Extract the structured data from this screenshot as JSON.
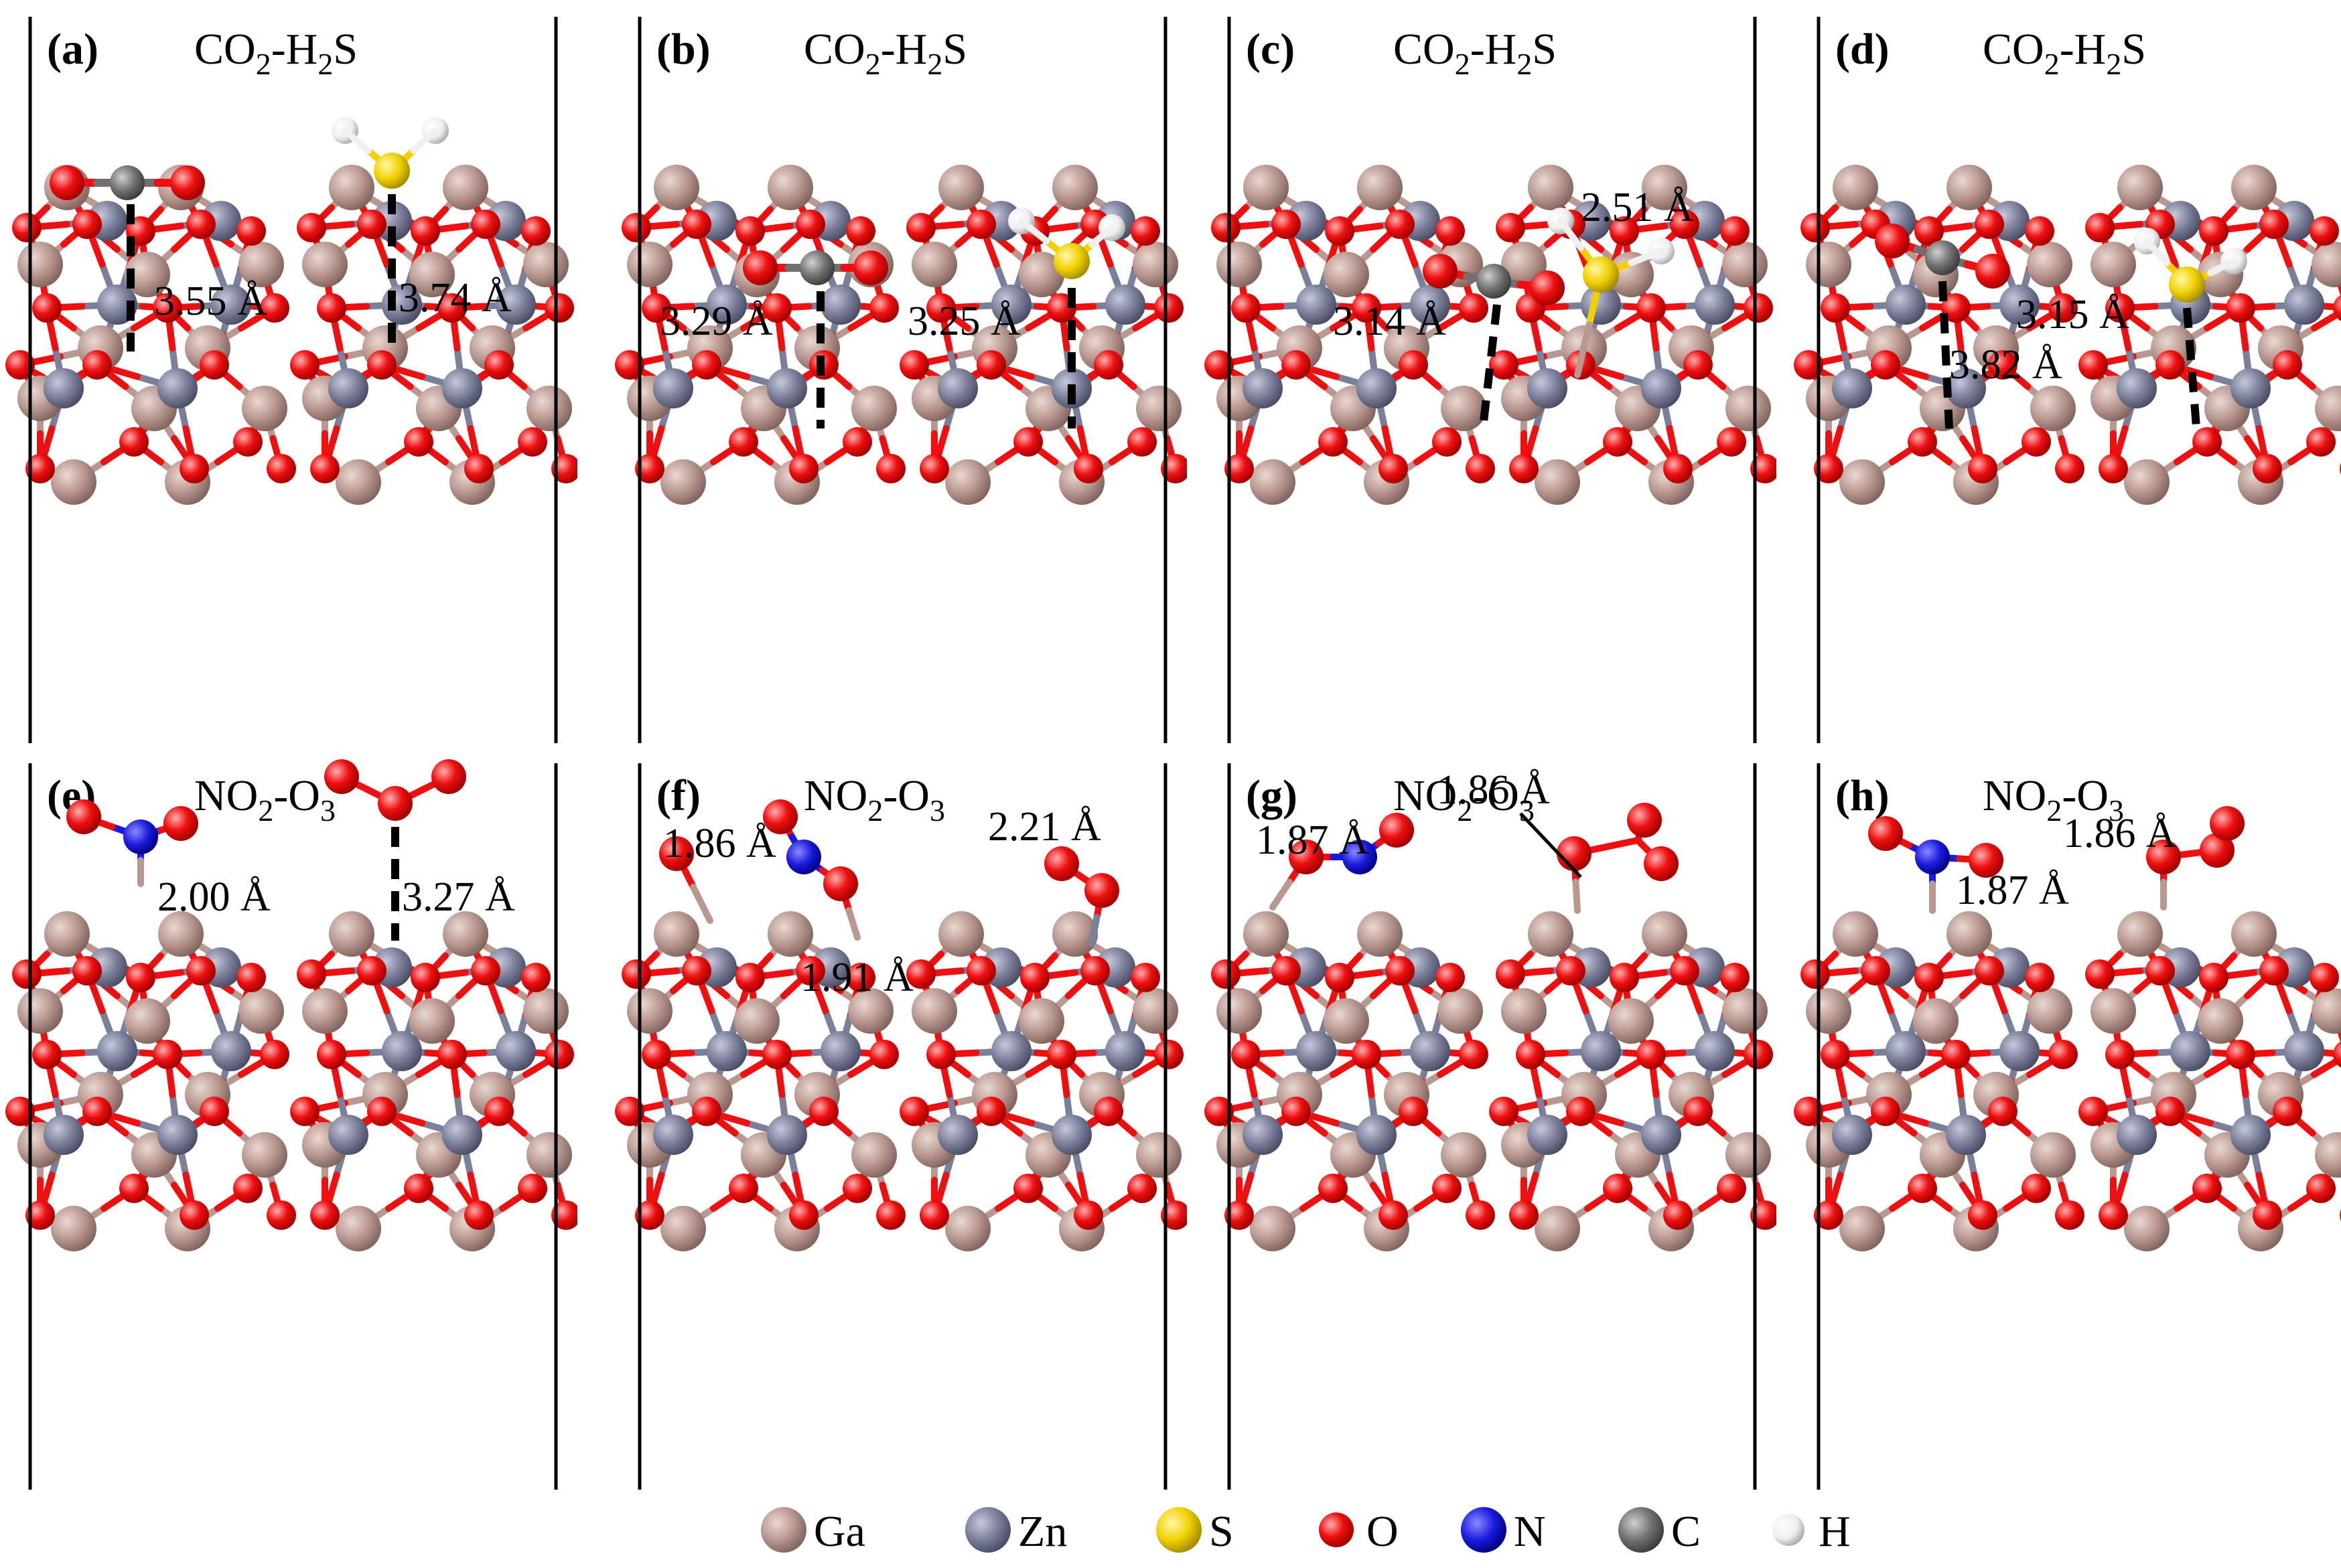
{
  "panels": [
    {
      "label": "(a)",
      "pair": {
        "a": "CO",
        "b": "2",
        "c": "-H",
        "d": "2",
        "e": "S"
      },
      "type": "co2",
      "distances": [
        "3.55 Å",
        "3.74 Å"
      ]
    },
    {
      "label": "(b)",
      "pair": {
        "a": "CO",
        "b": "2",
        "c": "-H",
        "d": "2",
        "e": "S"
      },
      "type": "co2",
      "distances": [
        "3.29 Å",
        "3.25 Å"
      ]
    },
    {
      "label": "(c)",
      "pair": {
        "a": "CO",
        "b": "2",
        "c": "-H",
        "d": "2",
        "e": "S"
      },
      "type": "co2",
      "distances": [
        "3.14 Å",
        "2.51 Å"
      ]
    },
    {
      "label": "(d)",
      "pair": {
        "a": "CO",
        "b": "2",
        "c": "-H",
        "d": "2",
        "e": "S"
      },
      "type": "co2",
      "distances": [
        "3.82 Å",
        "3.15 Å"
      ]
    },
    {
      "label": "(e)",
      "pair": {
        "a": "NO",
        "b": "2",
        "c": "-O",
        "d": "3",
        "e": ""
      },
      "type": "no2",
      "distances": [
        "2.00 Å",
        "3.27 Å"
      ]
    },
    {
      "label": "(f)",
      "pair": {
        "a": "NO",
        "b": "2",
        "c": "-O",
        "d": "3",
        "e": ""
      },
      "type": "no2",
      "distances": [
        "1.86 Å",
        "1.91 Å",
        "2.21 Å"
      ]
    },
    {
      "label": "(g)",
      "pair": {
        "a": "NO",
        "b": "2",
        "c": "-O",
        "d": "3",
        "e": ""
      },
      "type": "no2",
      "distances": [
        "1.87 Å",
        "1.86 Å"
      ]
    },
    {
      "label": "(h)",
      "pair": {
        "a": "NO",
        "b": "2",
        "c": "-O",
        "d": "3",
        "e": ""
      },
      "type": "no2",
      "distances": [
        "1.86 Å",
        "1.87 Å"
      ]
    }
  ],
  "legend": [
    {
      "symbol": "Ga",
      "color": "#b89890"
    },
    {
      "symbol": "Zn",
      "color": "#7a7f9a"
    },
    {
      "symbol": "S",
      "color": "#f0d000"
    },
    {
      "symbol": "O",
      "color": "#ee1010"
    },
    {
      "symbol": "N",
      "color": "#1a1adc"
    },
    {
      "symbol": "C",
      "color": "#707070"
    },
    {
      "symbol": "H",
      "color": "#f0f0f0"
    }
  ],
  "colors": {
    "Ga": "#b89890",
    "Zn": "#7a7f9a",
    "O": "#ee1010",
    "S": "#f0d000",
    "N": "#1a1adc",
    "C": "#707070",
    "H": "#f0f0f0",
    "border": "#000000"
  }
}
